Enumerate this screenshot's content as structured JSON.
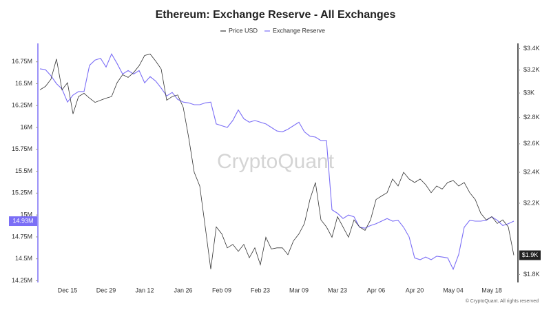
{
  "chart_data": {
    "type": "line",
    "title": "Ethereum: Exchange Reserve - All Exchanges",
    "watermark": "CryptoQuant",
    "footer": "© CryptoQuant. All rights reserved",
    "categories": [
      null,
      null,
      null,
      null,
      null,
      "Dec 15",
      null,
      null,
      null,
      null,
      null,
      null,
      "Dec 29",
      null,
      null,
      null,
      null,
      null,
      null,
      "Jan 12",
      null,
      null,
      null,
      null,
      null,
      null,
      "Jan 26",
      null,
      null,
      null,
      null,
      null,
      null,
      "Feb 09",
      null,
      null,
      null,
      null,
      null,
      null,
      "Feb 23",
      null,
      null,
      null,
      null,
      null,
      null,
      "Mar 09",
      null,
      null,
      null,
      null,
      null,
      null,
      "Mar 23",
      null,
      null,
      null,
      null,
      null,
      null,
      "Apr 06",
      null,
      null,
      null,
      null,
      null,
      null,
      "Apr 20",
      null,
      null,
      null,
      null,
      null,
      null,
      "May 04",
      null,
      null,
      null,
      null,
      null,
      null,
      "May 18",
      null,
      null,
      null,
      null
    ],
    "series": [
      {
        "name": "Price USD",
        "color": "#333333",
        "axis": "y2",
        "end_label": "$1.9K",
        "values": [
          3027,
          3057,
          3119,
          3302,
          3027,
          3088,
          2829,
          2970,
          2998,
          2957,
          2922,
          2940,
          2957,
          2970,
          3088,
          3159,
          3135,
          3178,
          3240,
          3335,
          3348,
          3283,
          3210,
          2940,
          2970,
          2984,
          2882,
          2645,
          2400,
          2309,
          2058,
          1827,
          2058,
          2018,
          1940,
          1959,
          1921,
          1959,
          1887,
          1940,
          1850,
          1999,
          1934,
          1940,
          1940,
          1903,
          1978,
          2018,
          2078,
          2223,
          2332,
          2099,
          2058,
          1999,
          2118,
          2058,
          1999,
          2099,
          2058,
          2038,
          2099,
          2223,
          2245,
          2266,
          2355,
          2309,
          2400,
          2355,
          2332,
          2355,
          2318,
          2266,
          2309,
          2289,
          2332,
          2345,
          2309,
          2332,
          2266,
          2223,
          2139,
          2099,
          2118,
          2078,
          2099,
          2058,
          1900
        ]
      },
      {
        "name": "Exchange Reserve",
        "color": "#7b6ef6",
        "axis": "y",
        "end_label": "14.93M",
        "values": [
          16.67,
          16.66,
          16.59,
          16.5,
          16.44,
          16.29,
          16.37,
          16.41,
          16.41,
          16.71,
          16.77,
          16.79,
          16.69,
          16.84,
          16.73,
          16.61,
          16.65,
          16.61,
          16.65,
          16.51,
          16.58,
          16.53,
          16.45,
          16.36,
          16.4,
          16.32,
          16.29,
          16.28,
          16.26,
          16.26,
          16.28,
          16.29,
          16.04,
          16.02,
          16.0,
          16.08,
          16.2,
          16.1,
          16.06,
          16.08,
          16.06,
          16.04,
          16.0,
          15.96,
          15.95,
          15.98,
          16.02,
          16.06,
          15.95,
          15.9,
          15.89,
          15.85,
          15.85,
          15.06,
          15.02,
          14.96,
          15.0,
          14.98,
          14.86,
          14.85,
          14.88,
          14.9,
          14.93,
          14.96,
          14.93,
          14.94,
          14.86,
          14.75,
          14.51,
          14.49,
          14.52,
          14.49,
          14.53,
          14.52,
          14.51,
          14.38,
          14.55,
          14.86,
          14.94,
          14.93,
          14.93,
          14.94,
          14.98,
          14.94,
          14.88,
          14.9,
          14.93
        ]
      }
    ],
    "ylim": [
      14.23,
      16.96
    ],
    "yticks": [
      {
        "value": 14.25,
        "label": "14.25M"
      },
      {
        "value": 14.5,
        "label": "14.5M"
      },
      {
        "value": 14.75,
        "label": "14.75M"
      },
      {
        "value": 15,
        "label": "15M"
      },
      {
        "value": 15.25,
        "label": "15.25M"
      },
      {
        "value": 15.5,
        "label": "15.5M"
      },
      {
        "value": 15.75,
        "label": "15.75M"
      },
      {
        "value": 16,
        "label": "16M"
      },
      {
        "value": 16.25,
        "label": "16.25M"
      },
      {
        "value": 16.5,
        "label": "16.5M"
      },
      {
        "value": 16.75,
        "label": "16.75M"
      }
    ],
    "y2lim": [
      1760,
      3450
    ],
    "y2_log": true,
    "y2ticks": [
      {
        "value": 1800,
        "label": "$1.8K"
      },
      {
        "value": 2200,
        "label": "$2.2K"
      },
      {
        "value": 2400,
        "label": "$2.4K"
      },
      {
        "value": 2600,
        "label": "$2.6K"
      },
      {
        "value": 2800,
        "label": "$2.8K"
      },
      {
        "value": 3000,
        "label": "$3K"
      },
      {
        "value": 3200,
        "label": "$3.2K"
      },
      {
        "value": 3400,
        "label": "$3.4K"
      }
    ],
    "grid": false,
    "legend": "top"
  }
}
